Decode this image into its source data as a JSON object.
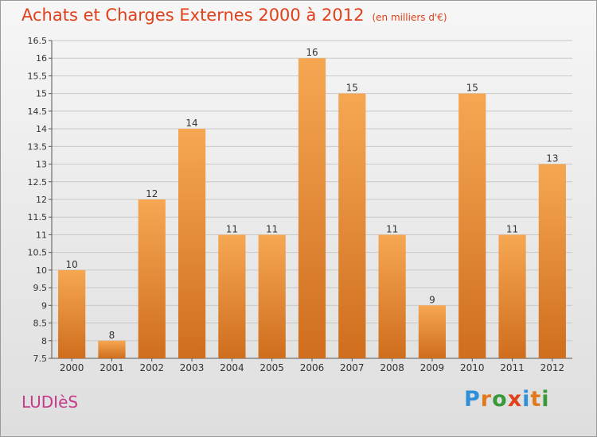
{
  "title": "Achats et Charges Externes 2000 à 2012",
  "unit": "(en milliers d'€)",
  "commune": "LUDIèS",
  "logo": {
    "letters": [
      "P",
      "r",
      "o",
      "x",
      "i",
      "t",
      "i"
    ],
    "colors": [
      "#2f8fd8",
      "#e07a1e",
      "#3a9a3a",
      "#e0401a",
      "#2f8fd8",
      "#e07a1e",
      "#3a9a3a"
    ]
  },
  "colors": {
    "bar": "#ee8f3c",
    "bar_light": "#f6a752",
    "bar_dark": "#cf6e1d",
    "title": "#e0401a",
    "commune": "#c43a8a"
  },
  "chart_data": {
    "type": "bar",
    "categories": [
      "2000",
      "2001",
      "2002",
      "2003",
      "2004",
      "2005",
      "2006",
      "2007",
      "2008",
      "2009",
      "2010",
      "2011",
      "2012"
    ],
    "values": [
      10,
      8,
      12,
      14,
      11,
      11,
      16,
      15,
      11,
      9,
      15,
      11,
      13
    ],
    "value_labels": [
      "10",
      "8",
      "12",
      "14",
      "11",
      "11",
      "16",
      "15",
      "11",
      "9",
      "15",
      "11",
      "13"
    ],
    "ylim": [
      7.5,
      16.5
    ],
    "yticks": [
      "7.5",
      "8",
      "8.5",
      "9",
      "9.5",
      "10",
      "10.5",
      "11",
      "11.5",
      "12",
      "12.5",
      "13",
      "13.5",
      "14",
      "14.5",
      "15",
      "15.5",
      "16",
      "16.5"
    ],
    "grid": true
  }
}
